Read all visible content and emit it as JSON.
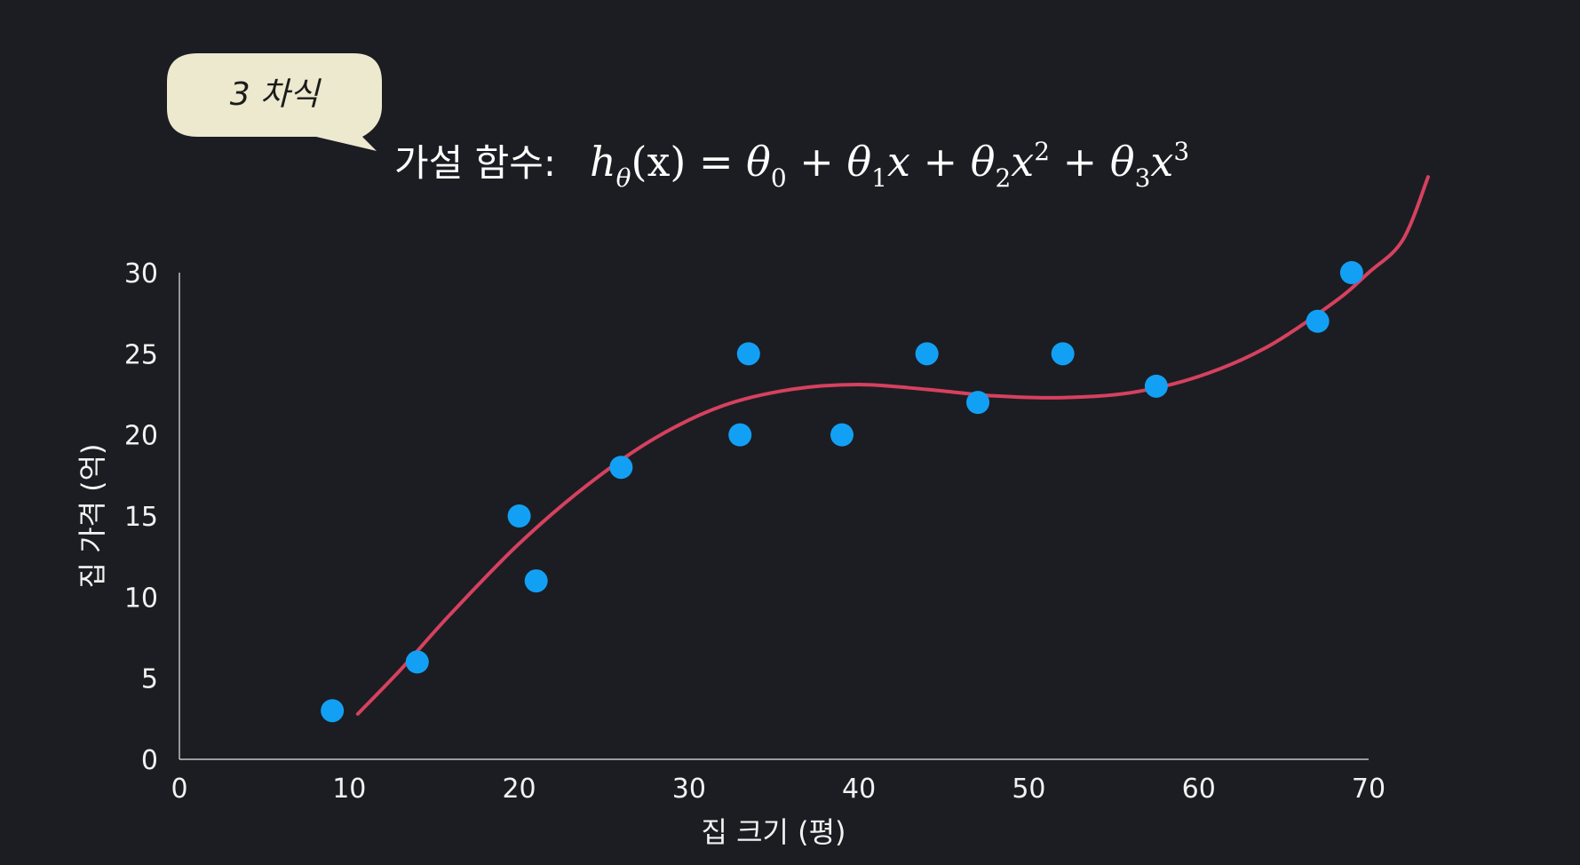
{
  "bubble": {
    "text": "3 차식"
  },
  "formula": {
    "label": "가설 함수:",
    "h": "h",
    "h_sub": "θ",
    "x_paren": "(x)",
    "eq": " = ",
    "t0": "θ",
    "t0_sub": "0",
    "plus1": " + ",
    "t1": "θ",
    "t1_sub": "1",
    "t1_x": "x",
    "plus2": " + ",
    "t2": "θ",
    "t2_sub": "2",
    "t2_x": "x",
    "t2_pow": "2",
    "plus3": " + ",
    "t3": "θ",
    "t3_sub": "3",
    "t3_x": "x",
    "t3_pow": "3"
  },
  "colors": {
    "background": "#1c1d22",
    "points": "#12a0f5",
    "curve": "#d6415f",
    "bubble": "#ece9cf"
  },
  "chart_data": {
    "type": "scatter",
    "xlabel": "집 크기 (평)",
    "ylabel": "집 가격 (억)",
    "xlim": [
      0,
      70
    ],
    "ylim": [
      0,
      30
    ],
    "xticks": [
      0,
      10,
      20,
      30,
      40,
      50,
      60,
      70
    ],
    "yticks": [
      0,
      5,
      10,
      15,
      20,
      25,
      30
    ],
    "grid": false,
    "points": [
      {
        "x": 9,
        "y": 3
      },
      {
        "x": 14,
        "y": 6
      },
      {
        "x": 20,
        "y": 15
      },
      {
        "x": 21,
        "y": 11
      },
      {
        "x": 26,
        "y": 18
      },
      {
        "x": 33,
        "y": 20
      },
      {
        "x": 33.5,
        "y": 25
      },
      {
        "x": 39,
        "y": 20
      },
      {
        "x": 44,
        "y": 25
      },
      {
        "x": 47,
        "y": 22
      },
      {
        "x": 52,
        "y": 25
      },
      {
        "x": 57.5,
        "y": 23
      },
      {
        "x": 67,
        "y": 27
      },
      {
        "x": 69,
        "y": 30
      }
    ],
    "fit_curve": {
      "type": "line",
      "x": [
        10.5,
        13,
        16,
        20,
        24,
        28,
        32,
        36,
        40,
        44,
        48,
        52,
        56,
        60,
        64,
        68,
        70,
        72,
        73.5
      ],
      "y": [
        2.8,
        5.5,
        9.0,
        13.3,
        16.9,
        19.8,
        21.8,
        22.8,
        23.1,
        22.8,
        22.4,
        22.3,
        22.6,
        23.6,
        25.4,
        28.2,
        30.0,
        32.0,
        35.9
      ]
    }
  }
}
